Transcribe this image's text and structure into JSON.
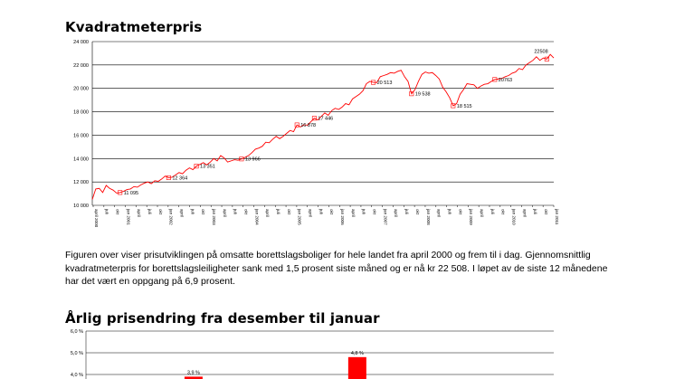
{
  "headings": {
    "chart1_title": "Kvadratmeterpris",
    "chart2_title": "Årlig prisendring fra desember til januar"
  },
  "paragraph": {
    "lines": [
      "Figuren over viser prisutviklingen på omsatte borettslagsboliger for hele landet fra april 2000 og frem til i dag. Gjennomsnittlig",
      "kvadratmeterpris for borettslagsleiligheter sank med 1,5 prosent siste måned og er nå kr 22 508. I løpet av de siste 12 månedene",
      "har det vært en oppgang på 6,9 prosent."
    ]
  },
  "chart_data": [
    {
      "type": "line",
      "title": "Kvadratmeterpris",
      "line_color": "#ff0000",
      "ylim": [
        10000,
        24000
      ],
      "yticks": [
        "10 000",
        "12 000",
        "14 000",
        "16 000",
        "18 000",
        "20 000",
        "22 000",
        "24 000"
      ],
      "grid": true,
      "xticks": [
        "april 2000",
        "juli",
        "okt",
        "jan 2001",
        "april",
        "juli",
        "okt",
        "jan 2002",
        "april",
        "juli",
        "okt",
        "jan 2003",
        "april",
        "juli",
        "okt",
        "jan 2004",
        "april",
        "juli",
        "okt",
        "jan 2005",
        "april",
        "juli",
        "okt",
        "jan 2006",
        "april",
        "juli",
        "okt",
        "jan 2007",
        "april",
        "juli",
        "okt",
        "jan 2008",
        "april",
        "juli",
        "okt",
        "jan 2009",
        "april",
        "juli",
        "okt",
        "jan 2010",
        "april",
        "juli",
        "okt",
        "jan 2011"
      ],
      "series": [
        {
          "values": [
            10500,
            11400,
            11450,
            11100,
            11700,
            11450,
            11300,
            11050,
            11095,
            11200,
            11350,
            11400,
            11600,
            11550,
            11750,
            11900,
            12000,
            11850,
            12100,
            12050,
            12250,
            12500,
            12364,
            12400,
            12600,
            12800,
            12700,
            13000,
            13200,
            13050,
            13351,
            13500,
            13650,
            13450,
            13700,
            14000,
            13800,
            14250,
            14050,
            13700,
            13800,
            13900,
            13850,
            13966,
            14100,
            14250,
            14500,
            14800,
            14900,
            15050,
            15400,
            15350,
            15650,
            15900,
            15700,
            15900,
            16150,
            16400,
            16300,
            16878,
            16700,
            16900,
            16850,
            17150,
            17446,
            17300,
            17600,
            17900,
            17700,
            18100,
            18300,
            18200,
            18400,
            18700,
            18600,
            19100,
            19300,
            19500,
            19800,
            20400,
            20600,
            20513,
            20500,
            21000,
            21100,
            21200,
            21350,
            21300,
            21450,
            21550,
            21000,
            20600,
            19538,
            19900,
            20600,
            21200,
            21400,
            21300,
            21350,
            21100,
            20800,
            20100,
            19700,
            19200,
            18515,
            18700,
            19500,
            19900,
            20400,
            20350,
            20300,
            20000,
            20200,
            20350,
            20400,
            20600,
            20763,
            20800,
            20850,
            21000,
            21100,
            21300,
            21400,
            21700,
            21600,
            22000,
            22200,
            22400,
            22700,
            22400,
            22600,
            22508,
            22900,
            22600
          ]
        }
      ],
      "data_labels": [
        {
          "index": 8,
          "text": "11 095"
        },
        {
          "index": 22,
          "text": "12 364"
        },
        {
          "index": 30,
          "text": "13 351"
        },
        {
          "index": 43,
          "text": "13 966"
        },
        {
          "index": 59,
          "text": "16 878"
        },
        {
          "index": 64,
          "text": "17 446"
        },
        {
          "index": 81,
          "text": "20 513"
        },
        {
          "index": 92,
          "text": "19 538"
        },
        {
          "index": 104,
          "text": "18 515"
        },
        {
          "index": 116,
          "text": "20763"
        },
        {
          "index": 131,
          "text": "22508"
        }
      ]
    },
    {
      "type": "bar",
      "title": "Årlig prisendring fra desember til januar",
      "ylim": [
        4.0,
        6.0
      ],
      "yticks": [
        "6,0 %",
        "5,0 %",
        "4,0 %"
      ],
      "bar_color": "#ff0000",
      "visible_bars": [
        {
          "position": 0.23,
          "value": 3.9,
          "label": "3,9 %"
        },
        {
          "position": 0.58,
          "value": 4.8,
          "label": "4,8 %"
        }
      ]
    }
  ]
}
